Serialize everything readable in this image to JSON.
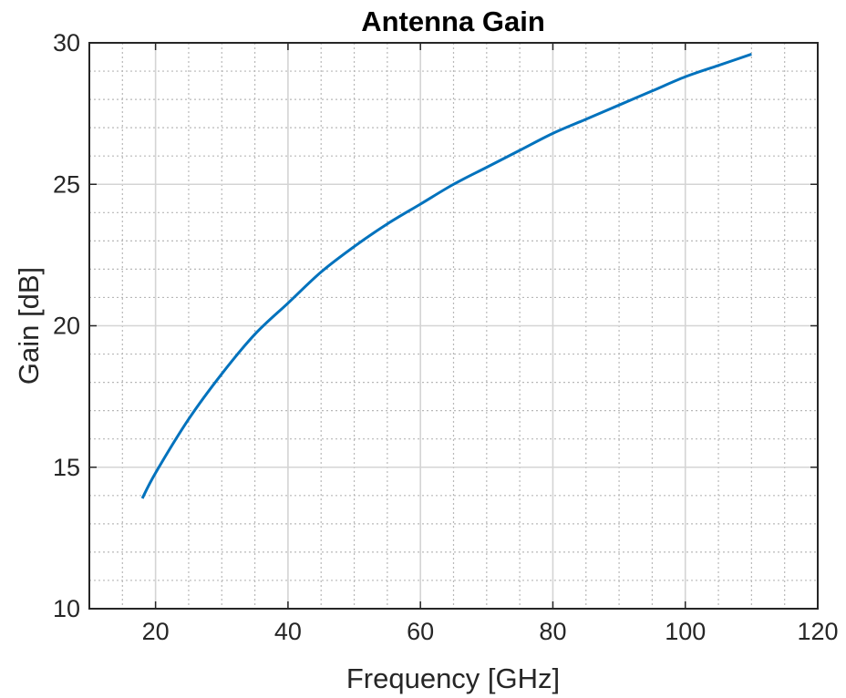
{
  "chart_data": {
    "type": "line",
    "title": "Antenna Gain",
    "xlabel": "Frequency [GHz]",
    "ylabel": "Gain [dB]",
    "xlim": [
      10,
      120
    ],
    "ylim": [
      10,
      30
    ],
    "xticks": [
      20,
      40,
      60,
      80,
      100,
      120
    ],
    "yticks": [
      10,
      15,
      20,
      25,
      30
    ],
    "x_minor_step": 5,
    "y_minor_step": 1,
    "grid": true,
    "minor_grid": true,
    "series": [
      {
        "color": "#0072BD",
        "x": [
          18,
          20,
          25,
          30,
          35,
          40,
          45,
          50,
          55,
          60,
          65,
          70,
          75,
          80,
          85,
          90,
          95,
          100,
          105,
          110
        ],
        "y": [
          13.9,
          14.8,
          16.7,
          18.3,
          19.7,
          20.8,
          21.9,
          22.8,
          23.6,
          24.3,
          25.0,
          25.6,
          26.2,
          26.8,
          27.3,
          27.8,
          28.3,
          28.8,
          29.2,
          29.6
        ]
      }
    ]
  }
}
